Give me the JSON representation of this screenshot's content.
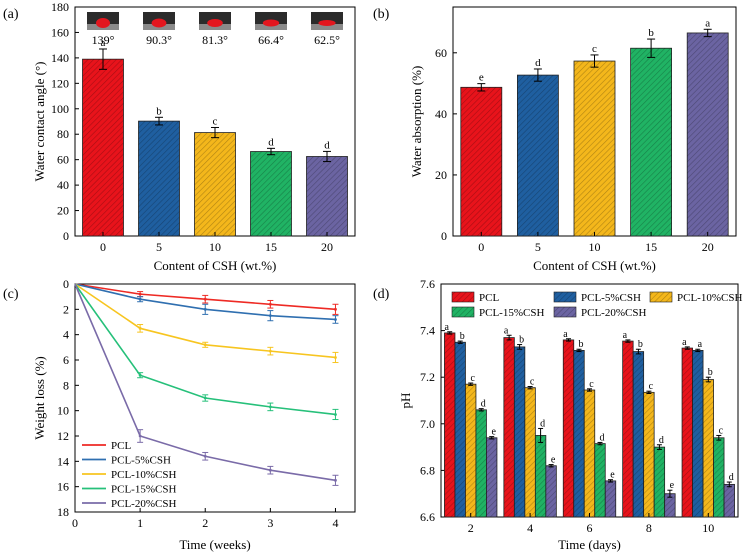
{
  "chart_data": [
    {
      "panel": "(a)",
      "type": "bar",
      "categories": [
        "0",
        "5",
        "10",
        "15",
        "20"
      ],
      "values": [
        139,
        90.3,
        81.3,
        66.4,
        62.5
      ],
      "errors": [
        8,
        3,
        4,
        2.5,
        4
      ],
      "letters": [
        "a",
        "b",
        "c",
        "d",
        "d"
      ],
      "top_labels": [
        "139°",
        "90.3°",
        "81.3°",
        "66.4°",
        "62.5°"
      ],
      "colors": [
        "#e8131b",
        "#1f5fa0",
        "#f4b71b",
        "#20b364",
        "#6b64a2"
      ],
      "xlabel": "Content of CSH (wt.%)",
      "ylabel": "Water contact angle (°)",
      "ylim": [
        0,
        180
      ],
      "yticks": [
        "0",
        "20",
        "40",
        "60",
        "80",
        "100",
        "120",
        "140",
        "160",
        "180"
      ]
    },
    {
      "panel": "(b)",
      "type": "bar",
      "categories": [
        "0",
        "5",
        "10",
        "15",
        "20"
      ],
      "values": [
        48.7,
        52.7,
        57.3,
        61.5,
        66.5
      ],
      "errors": [
        1.2,
        2,
        2,
        3,
        1.2
      ],
      "letters": [
        "e",
        "d",
        "c",
        "b",
        "a"
      ],
      "colors": [
        "#e8131b",
        "#1f5fa0",
        "#f4b71b",
        "#20b364",
        "#6b64a2"
      ],
      "xlabel": "Content of CSH (wt.%)",
      "ylabel": "Water absorption (%)",
      "ylim": [
        0,
        75
      ],
      "yticks": [
        "0",
        "20",
        "40",
        "60"
      ]
    },
    {
      "panel": "(c)",
      "type": "line",
      "x": [
        0,
        1,
        2,
        3,
        4
      ],
      "series": [
        {
          "name": "PCL",
          "color": "#ee2a24",
          "values": [
            0,
            0.8,
            1.2,
            1.6,
            2.0
          ],
          "errors": [
            0,
            0.2,
            0.3,
            0.3,
            0.4
          ]
        },
        {
          "name": "PCL-5%CSH",
          "color": "#2f6fb0",
          "values": [
            0,
            1.2,
            2.0,
            2.5,
            2.8
          ],
          "errors": [
            0,
            0.2,
            0.4,
            0.4,
            0.3
          ]
        },
        {
          "name": "PCL-10%CSH",
          "color": "#f7c520",
          "values": [
            0,
            3.5,
            4.8,
            5.3,
            5.8
          ],
          "errors": [
            0,
            0.3,
            0.2,
            0.3,
            0.4
          ]
        },
        {
          "name": "PCL-15%CSH",
          "color": "#26c07a",
          "values": [
            0,
            7.2,
            9.0,
            9.7,
            10.3
          ],
          "errors": [
            0,
            0.2,
            0.25,
            0.3,
            0.4
          ]
        },
        {
          "name": "PCL-20%CSH",
          "color": "#7a6ba8",
          "values": [
            0,
            12.0,
            13.6,
            14.7,
            15.5
          ],
          "errors": [
            0,
            0.5,
            0.3,
            0.3,
            0.4
          ]
        }
      ],
      "xlabel": "Time (weeks)",
      "ylabel": "Weight loss (%)",
      "ylim": [
        0,
        18
      ],
      "xlim": [
        0,
        4.3
      ],
      "yticks": [
        "0",
        "2",
        "4",
        "6",
        "8",
        "10",
        "12",
        "14",
        "16",
        "18"
      ],
      "xticks": [
        "0",
        "1",
        "2",
        "3",
        "4"
      ],
      "y_inverted": true
    },
    {
      "panel": "(d)",
      "type": "bar",
      "categories": [
        "2",
        "4",
        "6",
        "8",
        "10"
      ],
      "series": [
        {
          "name": "PCL",
          "color": "#e8131b",
          "values": [
            7.39,
            7.37,
            7.36,
            7.355,
            7.325
          ],
          "errors": [
            0.005,
            0.01,
            0.005,
            0.005,
            0.005
          ],
          "letters": [
            "a",
            "a",
            "a",
            "a",
            "a"
          ]
        },
        {
          "name": "PCL-5%CSH",
          "color": "#1f5fa0",
          "values": [
            7.35,
            7.33,
            7.315,
            7.31,
            7.315
          ],
          "errors": [
            0.005,
            0.01,
            0.005,
            0.01,
            0.005
          ],
          "letters": [
            "b",
            "b",
            "b",
            "b",
            "a"
          ]
        },
        {
          "name": "PCL-10%CSH",
          "color": "#f4b71b",
          "values": [
            7.17,
            7.155,
            7.145,
            7.135,
            7.19
          ],
          "errors": [
            0.005,
            0.005,
            0.005,
            0.005,
            0.01
          ],
          "letters": [
            "c",
            "c",
            "c",
            "c",
            "b"
          ]
        },
        {
          "name": "PCL-15%CSH",
          "color": "#20b364",
          "values": [
            7.06,
            6.95,
            6.915,
            6.9,
            6.94
          ],
          "errors": [
            0.005,
            0.03,
            0.005,
            0.01,
            0.01
          ],
          "letters": [
            "d",
            "d",
            "d",
            "d",
            "c"
          ]
        },
        {
          "name": "PCL-20%CSH",
          "color": "#6b64a2",
          "values": [
            6.94,
            6.82,
            6.755,
            6.7,
            6.74
          ],
          "errors": [
            0.005,
            0.005,
            0.005,
            0.015,
            0.01
          ],
          "letters": [
            "e",
            "e",
            "e",
            "e",
            "d"
          ]
        }
      ],
      "xlabel": "Time (days)",
      "ylabel": "pH",
      "ylim": [
        6.6,
        7.6
      ],
      "yticks": [
        "6.6",
        "6.8",
        "7.0",
        "7.2",
        "7.4",
        "7.6"
      ]
    }
  ]
}
